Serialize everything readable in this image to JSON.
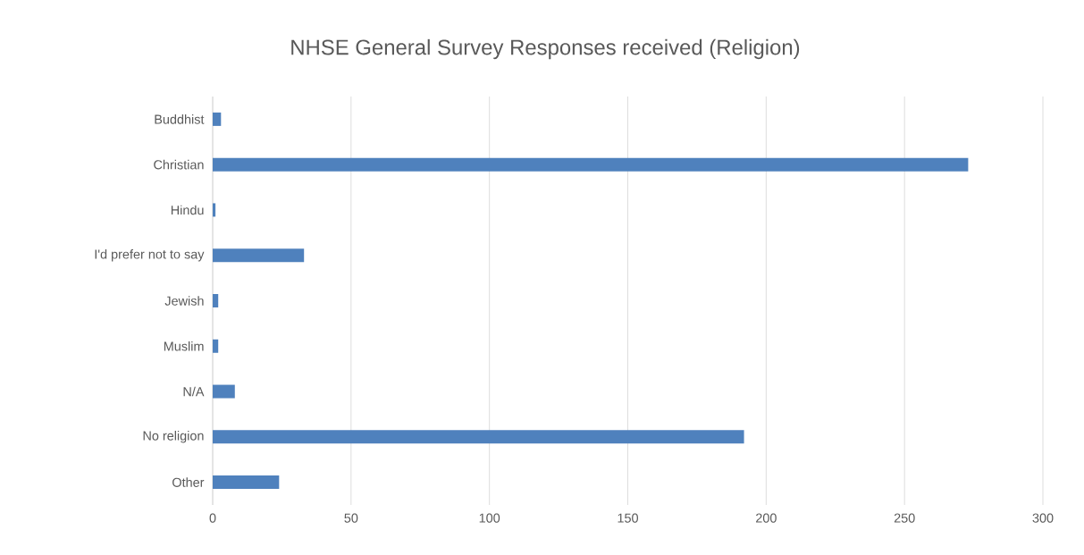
{
  "chart_data": {
    "type": "bar",
    "orientation": "horizontal",
    "title": "NHSE General Survey Responses received (Religion)",
    "categories": [
      "Buddhist",
      "Christian",
      "Hindu",
      "I'd prefer not to say",
      "Jewish",
      "Muslim",
      "N/A",
      "No religion",
      "Other"
    ],
    "values": [
      3,
      273,
      1,
      33,
      2,
      2,
      8,
      192,
      24
    ],
    "color": "#4f81bd",
    "xlim": [
      0,
      300
    ],
    "xticks": [
      0,
      50,
      100,
      150,
      200,
      250,
      300
    ],
    "grid": "x"
  }
}
